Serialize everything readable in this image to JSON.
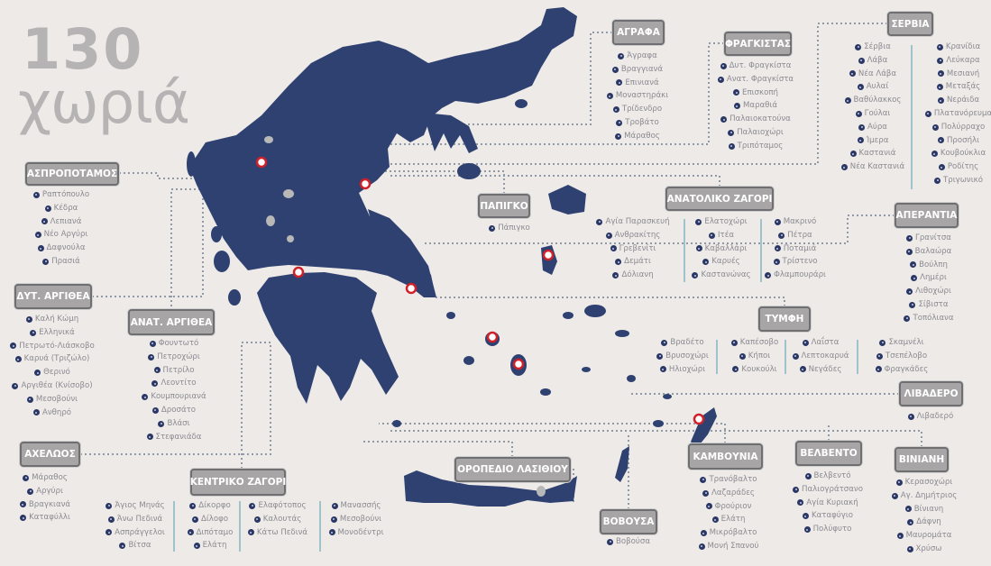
{
  "title": {
    "number": "130",
    "word": "χωριά"
  },
  "colors": {
    "land": "#2f4170",
    "background": "#eeeae8",
    "label_box": "#a7a5a5",
    "marker": "#d0202a",
    "connector": "#8f9aa6"
  },
  "groups": [
    {
      "label": "ΑΣΠΡΟΠΟΤΑΜΟΣ",
      "columns": [
        [
          "Ραπτόπουλο",
          "Κέδρα",
          "Λεπιανά",
          "Νέο Αργύρι",
          "Δαφνούλα",
          "Πρασιά"
        ]
      ]
    },
    {
      "label": "ΔΥΤ. ΑΡΓΙΘΕΑ",
      "columns": [
        [
          "Καλή Κώμη",
          "Ελληνικά",
          "Πετρωτό-Λιάσκοβο",
          "Καρυά (Τριζώλο)",
          "Θερινό",
          "Αργιθέα (Κνίσοβο)",
          "Μεσοβούνι",
          "Ανθηρό"
        ]
      ]
    },
    {
      "label": "ΑΝΑΤ. ΑΡΓΙΘΕΑ",
      "columns": [
        [
          "Φουντωτό",
          "Πετροχώρι",
          "Πετρίλο",
          "Λεοντίτο",
          "Κουμπουριανά",
          "Δροσάτο",
          "Βλάσι",
          "Στεφανιάδα"
        ]
      ]
    },
    {
      "label": "ΑΧΕΛΩΟΣ",
      "columns": [
        [
          "Μάραθος",
          "Αργύρι",
          "Βραγκιανά",
          "Καταφύλλι"
        ]
      ]
    },
    {
      "label": "ΚΕΝΤΡΙΚΟ ΖΑΓΟΡΙ",
      "columns": [
        [
          "Άγιος Μηνάς",
          "Άνω Πεδινά",
          "Ασπράγγελοι",
          "Βίτσα"
        ],
        [
          "Δίκορφο",
          "Δίλοφο",
          "Διπόταμο",
          "Ελάτη"
        ],
        [
          "Ελαφότοπος",
          "Καλουτάς",
          "Κάτω Πεδινά"
        ],
        [
          "Μανασσής",
          "Μεσοβούνι",
          "Μονοδέντρι"
        ]
      ]
    },
    {
      "label": "ΑΓΡΑΦΑ",
      "columns": [
        [
          "Άγραφα",
          "Βραγγιανά",
          "Επινιανά",
          "Μοναστηράκι",
          "Τρίδενδρο",
          "Τροβάτο",
          "Μάραθος"
        ]
      ]
    },
    {
      "label": "ΦΡΑΓΚΙΣΤΑΣ",
      "columns": [
        [
          "Δυτ. Φραγκίστα",
          "Ανατ. Φραγκίστα",
          "Επισκοπή",
          "Μαραθιά",
          "Παλαιοκατούνα",
          "Παλαιοχώρι",
          "Τριπόταμος"
        ]
      ]
    },
    {
      "label": "ΣΕΡΒΙΑ",
      "columns": [
        [
          "Σέρβια",
          "Λάβα",
          "Νέα Λάβα",
          "Αυλαί",
          "Βαθύλακκος",
          "Γούλαι",
          "Αύρα",
          "Ίμερα",
          "Καστανιά",
          "Νέα Καστανιά"
        ],
        [
          "Κρανίδια",
          "Λεύκαρα",
          "Μεσιανή",
          "Μεταξάς",
          "Νεράιδα",
          "Πλατανόρευμα",
          "Πολύρραχο",
          "Προσήλι",
          "Κουβούκλια",
          "Ροδίτης",
          "Τριγωνικό"
        ]
      ]
    },
    {
      "label": "ΠΑΠΙΓΚΟ",
      "columns": [
        [
          "Πάπιγκο"
        ]
      ]
    },
    {
      "label": "ΑΝΑΤΟΛΙΚΟ ΖΑΓΟΡΙ",
      "columns": [
        [
          "Αγία Παρασκευή",
          "Ανθρακίτης",
          "Γρεβενίτι",
          "Δεμάτι",
          "Δόλιανη"
        ],
        [
          "Ελατοχώρι",
          "Ιτέα",
          "Καβαλλάρι",
          "Καρυές",
          "Καστανώνας"
        ],
        [
          "Μακρινό",
          "Πέτρα",
          "Ποταμιά",
          "Τρίστενο",
          "Φλαμπουράρι"
        ]
      ]
    },
    {
      "label": "ΑΠΕΡΑΝΤΙΑ",
      "columns": [
        [
          "Γρανίτσα",
          "Βαλαώρα",
          "Βούλπη",
          "Λημέρι",
          "Λιθοχώρι",
          "Σίβιστα",
          "Τοπόλιανα"
        ]
      ]
    },
    {
      "label": "ΤΥΜΦΗ",
      "columns": [
        [
          "Βραδέτο",
          "Βρυσοχώρι",
          "Ηλιοχώρι"
        ],
        [
          "Καπέσοβο",
          "Κήποι",
          "Κουκούλι"
        ],
        [
          "Λαΐστα",
          "Λεπτοκαρυά",
          "Νεγάδες"
        ],
        [
          "Σκαμνέλι",
          "Τσεπέλοβο",
          "Φραγκάδες"
        ]
      ]
    },
    {
      "label": "ΛΙΒΑΔΕΡΟ",
      "columns": [
        [
          "Λιβαδερό"
        ]
      ]
    },
    {
      "label": "ΚΑΜΒΟΥΝΙΑ",
      "columns": [
        [
          "Τρανόβαλτο",
          "Λαζαράδες",
          "Φρούριον",
          "Ελάτη",
          "Μικρόβαλτο",
          "Μονή Σπανού"
        ]
      ]
    },
    {
      "label": "ΒΕΛΒΕΝΤΟ",
      "columns": [
        [
          "Βελβεντό",
          "Παλιογράτσανο",
          "Αγία Κυριακή",
          "Καταφύγιο",
          "Πολύφυτο"
        ]
      ]
    },
    {
      "label": "ΒΙΝΙΑΝΗ",
      "columns": [
        [
          "Κερασοχώρι",
          "Αγ. Δημήτριος",
          "Βίνιανη",
          "Δάφνη",
          "Μαυρομάτα",
          "Χρύσω"
        ]
      ]
    },
    {
      "label": "ΒΟΒΟΥΣΑ",
      "columns": [
        [
          "Βοβούσα"
        ]
      ]
    },
    {
      "label": "ΟΡΟΠΕΔΙΟ ΛΑΣΙΘΙΟΥ",
      "columns": []
    }
  ]
}
